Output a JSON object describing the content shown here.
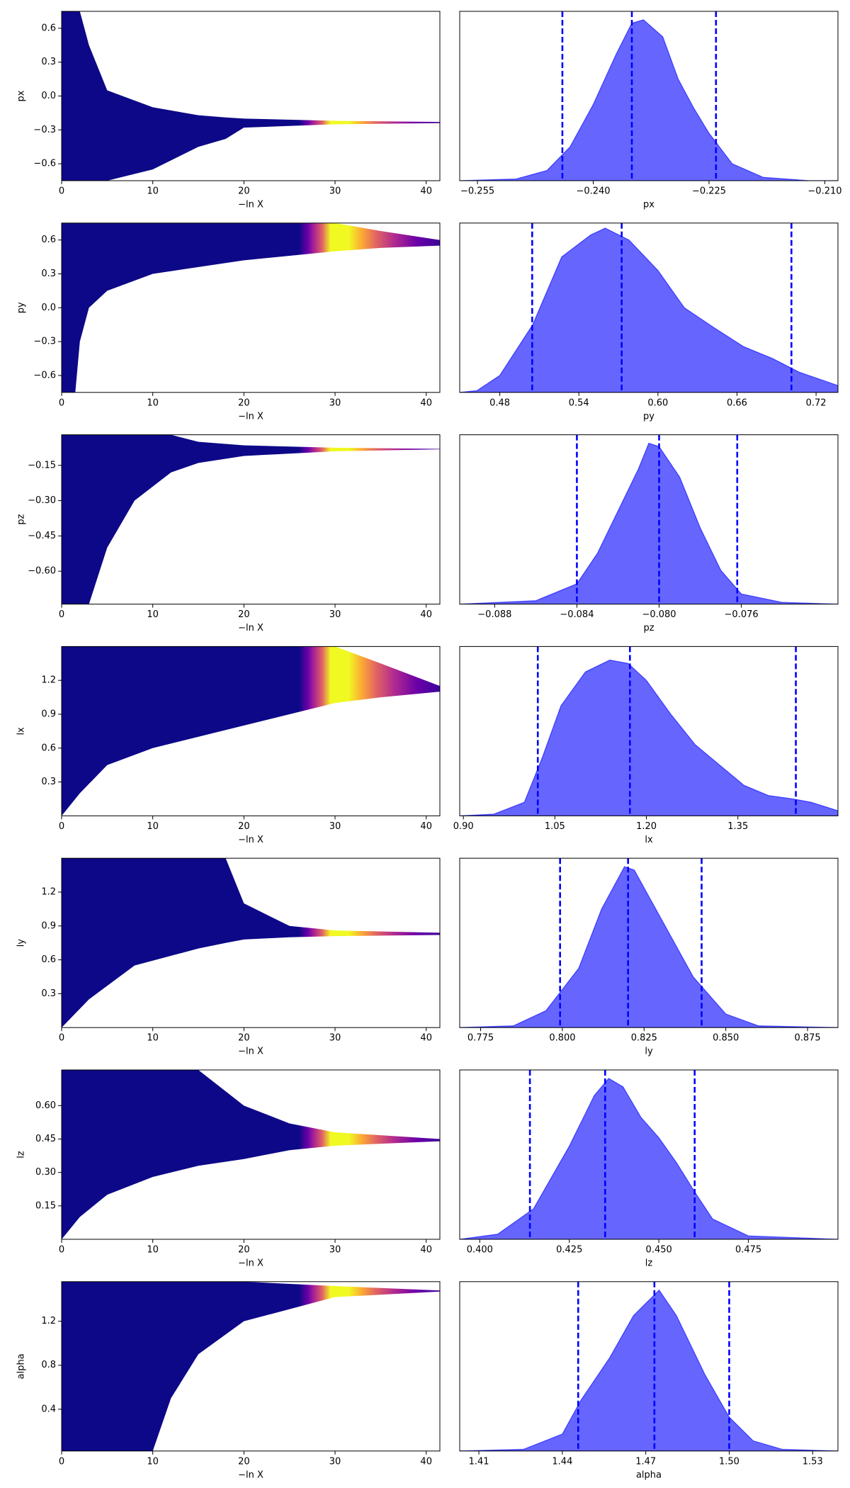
{
  "chart_data": [
    {
      "type": "band",
      "ylabel": "px",
      "xlabel": "−ln X",
      "x": [
        0,
        2,
        3,
        5,
        10,
        15,
        18,
        20,
        30,
        41.5
      ],
      "upper": [
        0.75,
        0.75,
        0.45,
        0.05,
        -0.1,
        -0.17,
        -0.19,
        -0.2,
        -0.22,
        -0.23
      ],
      "lower": [
        -0.75,
        -0.75,
        -0.75,
        -0.75,
        -0.65,
        -0.45,
        -0.38,
        -0.28,
        -0.25,
        -0.24
      ],
      "xlim": [
        0,
        41.5
      ],
      "ylim": [
        -0.75,
        0.75
      ],
      "xticks": [
        0,
        10,
        20,
        30,
        40
      ],
      "yticks": [
        0.6,
        0.3,
        {
          "value": 0,
          "label": "0.0"
        },
        {
          "value": -0.3,
          "label": "−0.3"
        },
        {
          "value": -0.6,
          "label": "−0.6"
        }
      ],
      "colormap": {
        "x": [
          0,
          26,
          27,
          27.8,
          28.6,
          29.5,
          31.5,
          33,
          34.5,
          36.5,
          39,
          41.5
        ],
        "colors": [
          "#0d0887",
          "#0d0887",
          "#6a00a8",
          "#b12a90",
          "#e16462",
          "#f0f921",
          "#f0f921",
          "#fca636",
          "#e16462",
          "#b12a90",
          "#6a00a8",
          "#3d049b"
        ]
      }
    },
    {
      "type": "density",
      "xlabel": "px",
      "x": [
        -0.2573,
        -0.25,
        -0.246,
        -0.243,
        -0.24,
        -0.237,
        -0.235,
        -0.2335,
        -0.231,
        -0.229,
        -0.227,
        -0.225,
        -0.222,
        -0.218,
        -0.212,
        -0.2083
      ],
      "values": [
        0,
        0.01,
        0.06,
        0.2,
        0.45,
        0.75,
        0.93,
        0.95,
        0.85,
        0.6,
        0.43,
        0.28,
        0.1,
        0.02,
        0,
        0
      ],
      "quantiles": [
        -0.244,
        -0.235,
        -0.2241
      ],
      "xlim": [
        -0.2573,
        -0.2083
      ],
      "ylim": [
        0,
        1
      ],
      "xticks": [
        {
          "value": -0.255,
          "label": "−0.255"
        },
        {
          "value": -0.24,
          "label": "−0.240"
        },
        {
          "value": -0.225,
          "label": "−0.225"
        },
        {
          "value": -0.21,
          "label": "−0.210"
        }
      ],
      "color": "#0000ff"
    },
    {
      "type": "band",
      "ylabel": "py",
      "xlabel": "−ln X",
      "x": [
        0,
        1.5,
        2,
        3,
        5,
        10,
        20,
        30,
        35,
        41.5
      ],
      "upper": [
        0.75,
        0.75,
        0.75,
        0.75,
        0.75,
        0.75,
        0.75,
        0.75,
        0.68,
        0.6
      ],
      "lower": [
        -0.75,
        -0.75,
        -0.3,
        0,
        0.15,
        0.3,
        0.42,
        0.5,
        0.53,
        0.55
      ],
      "xlim": [
        0,
        41.5
      ],
      "ylim": [
        -0.75,
        0.75
      ],
      "xticks": [
        0,
        10,
        20,
        30,
        40
      ],
      "yticks": [
        0.6,
        0.3,
        {
          "value": 0,
          "label": "0.0"
        },
        {
          "value": -0.3,
          "label": "−0.3"
        },
        {
          "value": -0.6,
          "label": "−0.6"
        }
      ],
      "colormap": {
        "x": [
          0,
          26,
          27,
          27.8,
          28.6,
          29.5,
          31.5,
          33,
          34.5,
          36.5,
          39,
          41.5
        ],
        "colors": [
          "#0d0887",
          "#0d0887",
          "#6a00a8",
          "#b12a90",
          "#e16462",
          "#f0f921",
          "#f0f921",
          "#fca636",
          "#e16462",
          "#b12a90",
          "#6a00a8",
          "#3d049b"
        ]
      }
    },
    {
      "type": "density",
      "xlabel": "py",
      "x": [
        0.4496,
        0.4626,
        0.48,
        0.505,
        0.527,
        0.549,
        0.56,
        0.578,
        0.6,
        0.62,
        0.643,
        0.665,
        0.687,
        0.707,
        0.7366
      ],
      "values": [
        0,
        0.01,
        0.1,
        0.4,
        0.8,
        0.93,
        0.97,
        0.9,
        0.72,
        0.5,
        0.38,
        0.27,
        0.2,
        0.12,
        0.04
      ],
      "quantiles": [
        0.5046,
        0.5725,
        0.7013
      ],
      "xlim": [
        0.4496,
        0.7366
      ],
      "ylim": [
        0,
        1
      ],
      "xticks": [
        0.48,
        0.54,
        {
          "value": 0.6,
          "label": "0.60"
        },
        0.66,
        0.72
      ],
      "color": "#0000ff"
    },
    {
      "type": "band",
      "ylabel": "pz",
      "xlabel": "−ln X",
      "x": [
        0,
        3,
        5,
        8,
        12,
        15,
        20,
        30,
        41.5
      ],
      "upper": [
        -0.02,
        -0.02,
        -0.02,
        -0.02,
        -0.02,
        -0.05,
        -0.065,
        -0.075,
        -0.08
      ],
      "lower": [
        -0.74,
        -0.74,
        -0.5,
        -0.3,
        -0.18,
        -0.14,
        -0.11,
        -0.09,
        -0.082
      ],
      "xlim": [
        0,
        41.5
      ],
      "ylim": [
        -0.74,
        -0.02
      ],
      "xticks": [
        0,
        10,
        20,
        30,
        40
      ],
      "yticks": [
        {
          "value": -0.15,
          "label": "−0.15"
        },
        {
          "value": -0.3,
          "label": "−0.30"
        },
        {
          "value": -0.45,
          "label": "−0.45"
        },
        {
          "value": -0.6,
          "label": "−0.60"
        }
      ],
      "colormap": {
        "x": [
          0,
          26,
          27,
          27.8,
          28.6,
          29.5,
          31.5,
          33,
          34.5,
          36.5,
          39,
          41.5
        ],
        "colors": [
          "#0d0887",
          "#0d0887",
          "#6a00a8",
          "#b12a90",
          "#e16462",
          "#f0f921",
          "#f0f921",
          "#fca636",
          "#e16462",
          "#b12a90",
          "#6a00a8",
          "#3d049b"
        ]
      }
    },
    {
      "type": "density",
      "xlabel": "pz",
      "x": [
        -0.0897,
        -0.086,
        -0.084,
        -0.083,
        -0.082,
        -0.081,
        -0.0805,
        -0.08,
        -0.079,
        -0.078,
        -0.077,
        -0.076,
        -0.074,
        -0.0713
      ],
      "values": [
        0,
        0.02,
        0.12,
        0.3,
        0.55,
        0.8,
        0.95,
        0.93,
        0.75,
        0.45,
        0.2,
        0.06,
        0.01,
        0
      ],
      "quantiles": [
        -0.084,
        -0.08,
        -0.0762
      ],
      "xlim": [
        -0.0897,
        -0.0713
      ],
      "ylim": [
        0,
        1
      ],
      "xticks": [
        {
          "value": -0.088,
          "label": "−0.088"
        },
        {
          "value": -0.084,
          "label": "−0.084"
        },
        {
          "value": -0.08,
          "label": "−0.080"
        },
        {
          "value": -0.076,
          "label": "−0.076"
        }
      ],
      "color": "#0000ff"
    },
    {
      "type": "band",
      "ylabel": "lx",
      "xlabel": "−ln X",
      "x": [
        0,
        2,
        5,
        10,
        20,
        30,
        35,
        41.5
      ],
      "upper": [
        1.5,
        1.5,
        1.5,
        1.5,
        1.5,
        1.5,
        1.35,
        1.15
      ],
      "lower": [
        0,
        0.2,
        0.45,
        0.6,
        0.8,
        1.0,
        1.05,
        1.1
      ],
      "xlim": [
        0,
        41.5
      ],
      "ylim": [
        0,
        1.5
      ],
      "xticks": [
        0,
        10,
        20,
        30,
        40
      ],
      "yticks": [
        1.2,
        0.9,
        0.6,
        0.3
      ],
      "colormap": {
        "x": [
          0,
          26,
          27,
          27.8,
          28.6,
          29.5,
          31.5,
          33,
          34.5,
          36.5,
          39,
          41.5
        ],
        "colors": [
          "#0d0887",
          "#0d0887",
          "#6a00a8",
          "#b12a90",
          "#e16462",
          "#f0f921",
          "#f0f921",
          "#fca636",
          "#e16462",
          "#b12a90",
          "#6a00a8",
          "#3d049b"
        ]
      }
    },
    {
      "type": "density",
      "xlabel": "lx",
      "x": [
        0.894,
        0.95,
        1.0,
        1.03,
        1.06,
        1.1,
        1.14,
        1.17,
        1.2,
        1.24,
        1.28,
        1.32,
        1.36,
        1.4,
        1.44,
        1.47,
        1.514
      ],
      "values": [
        0,
        0.01,
        0.08,
        0.35,
        0.65,
        0.85,
        0.92,
        0.9,
        0.8,
        0.6,
        0.42,
        0.3,
        0.18,
        0.12,
        0.1,
        0.08,
        0.03
      ],
      "quantiles": [
        1.022,
        1.173,
        1.445
      ],
      "xlim": [
        0.894,
        1.514
      ],
      "ylim": [
        0,
        1
      ],
      "xticks": [
        {
          "value": 0.9,
          "label": "0.90"
        },
        1.05,
        {
          "value": 1.2,
          "label": "1.20"
        },
        1.35
      ],
      "color": "#0000ff"
    },
    {
      "type": "band",
      "ylabel": "ly",
      "xlabel": "−ln X",
      "x": [
        0,
        3,
        8,
        15,
        18,
        20,
        25,
        30,
        41.5
      ],
      "upper": [
        1.5,
        1.5,
        1.5,
        1.5,
        1.5,
        1.1,
        0.9,
        0.86,
        0.84
      ],
      "lower": [
        0,
        0.25,
        0.55,
        0.7,
        0.75,
        0.78,
        0.8,
        0.81,
        0.82
      ],
      "xlim": [
        0,
        41.5
      ],
      "ylim": [
        0,
        1.5
      ],
      "xticks": [
        0,
        10,
        20,
        30,
        40
      ],
      "yticks": [
        1.2,
        0.9,
        0.6,
        0.3
      ],
      "colormap": {
        "x": [
          0,
          26,
          27,
          27.8,
          28.6,
          29.5,
          31.5,
          33,
          34.5,
          36.5,
          39,
          41.5
        ],
        "colors": [
          "#0d0887",
          "#0d0887",
          "#6a00a8",
          "#b12a90",
          "#e16462",
          "#f0f921",
          "#f0f921",
          "#fca636",
          "#e16462",
          "#b12a90",
          "#6a00a8",
          "#3d049b"
        ]
      }
    },
    {
      "type": "density",
      "xlabel": "ly",
      "x": [
        0.7686,
        0.785,
        0.795,
        0.805,
        0.812,
        0.819,
        0.822,
        0.83,
        0.84,
        0.85,
        0.86,
        0.8843
      ],
      "values": [
        0,
        0.01,
        0.1,
        0.35,
        0.7,
        0.95,
        0.93,
        0.65,
        0.3,
        0.08,
        0.01,
        0
      ],
      "quantiles": [
        0.7993,
        0.8201,
        0.8426
      ],
      "xlim": [
        0.7686,
        0.8843
      ],
      "ylim": [
        0,
        1
      ],
      "xticks": [
        0.775,
        {
          "value": 0.8,
          "label": "0.800"
        },
        0.825,
        {
          "value": 0.85,
          "label": "0.850"
        },
        0.875
      ],
      "color": "#0000ff"
    },
    {
      "type": "band",
      "ylabel": "lz",
      "xlabel": "−ln X",
      "x": [
        0,
        2,
        5,
        10,
        15,
        20,
        25,
        30,
        41.5
      ],
      "upper": [
        0.76,
        0.76,
        0.76,
        0.76,
        0.76,
        0.6,
        0.52,
        0.48,
        0.45
      ],
      "lower": [
        0,
        0.1,
        0.2,
        0.28,
        0.33,
        0.36,
        0.4,
        0.42,
        0.44
      ],
      "xlim": [
        0,
        41.5
      ],
      "ylim": [
        0,
        0.76
      ],
      "xticks": [
        0,
        10,
        20,
        30,
        40
      ],
      "yticks": [
        {
          "value": 0.6,
          "label": "0.60"
        },
        0.45,
        {
          "value": 0.3,
          "label": "0.30"
        },
        0.15
      ],
      "colormap": {
        "x": [
          0,
          26,
          27,
          27.8,
          28.6,
          29.5,
          31.5,
          33,
          34.5,
          36.5,
          39,
          41.5
        ],
        "colors": [
          "#0d0887",
          "#0d0887",
          "#6a00a8",
          "#b12a90",
          "#e16462",
          "#f0f921",
          "#f0f921",
          "#fca636",
          "#e16462",
          "#b12a90",
          "#6a00a8",
          "#3d049b"
        ]
      }
    },
    {
      "type": "density",
      "xlabel": "lz",
      "x": [
        0.3944,
        0.405,
        0.415,
        0.425,
        0.432,
        0.436,
        0.44,
        0.445,
        0.45,
        0.455,
        0.46,
        0.465,
        0.475,
        0.5
      ],
      "values": [
        0,
        0.03,
        0.18,
        0.55,
        0.85,
        0.95,
        0.9,
        0.72,
        0.6,
        0.45,
        0.28,
        0.12,
        0.02,
        0
      ],
      "quantiles": [
        0.414,
        0.435,
        0.46
      ],
      "xlim": [
        0.3944,
        0.5
      ],
      "ylim": [
        0,
        1
      ],
      "xticks": [
        {
          "value": 0.4,
          "label": "0.400"
        },
        0.425,
        {
          "value": 0.45,
          "label": "0.450"
        },
        0.475
      ],
      "color": "#0000ff"
    },
    {
      "type": "band",
      "ylabel": "alpha",
      "xlabel": "−ln X",
      "x": [
        0,
        10,
        12,
        15,
        20,
        30,
        41.5
      ],
      "upper": [
        1.56,
        1.56,
        1.56,
        1.56,
        1.56,
        1.52,
        1.48
      ],
      "lower": [
        0.02,
        0.02,
        0.5,
        0.9,
        1.2,
        1.42,
        1.47
      ],
      "xlim": [
        0,
        41.5
      ],
      "ylim": [
        0.02,
        1.56
      ],
      "xticks": [
        0,
        10,
        20,
        30,
        40
      ],
      "yticks": [
        1.2,
        0.8,
        0.4
      ],
      "colormap": {
        "x": [
          0,
          26,
          27,
          27.8,
          28.6,
          29.5,
          31.5,
          33,
          34.5,
          36.5,
          39,
          41.5
        ],
        "colors": [
          "#0d0887",
          "#0d0887",
          "#6a00a8",
          "#b12a90",
          "#e16462",
          "#f0f921",
          "#f0f921",
          "#fca636",
          "#e16462",
          "#b12a90",
          "#6a00a8",
          "#3d049b"
        ]
      }
    },
    {
      "type": "density",
      "xlabel": "alpha",
      "x": [
        1.4031,
        1.4261,
        1.44,
        1.4467,
        1.457,
        1.4656,
        1.4748,
        1.481,
        1.4913,
        1.5,
        1.5086,
        1.519,
        1.5391
      ],
      "values": [
        0,
        0.01,
        0.1,
        0.3,
        0.55,
        0.8,
        0.95,
        0.8,
        0.45,
        0.2,
        0.06,
        0.01,
        0
      ],
      "quantiles": [
        1.4457,
        1.4731,
        1.5
      ],
      "xlim": [
        1.4031,
        1.5391
      ],
      "ylim": [
        0,
        1
      ],
      "xticks": [
        1.41,
        1.44,
        1.47,
        {
          "value": 1.5,
          "label": "1.50"
        },
        1.53
      ],
      "color": "#0000ff"
    }
  ]
}
